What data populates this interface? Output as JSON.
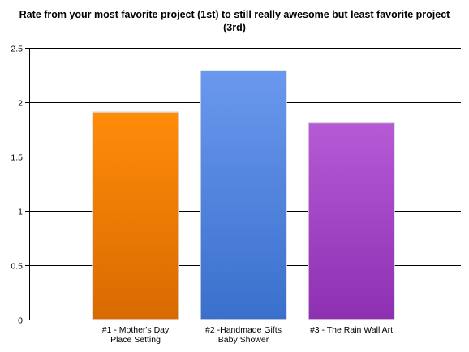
{
  "chart_data": {
    "type": "bar",
    "title_lines": [
      "Rate from your most favorite project (1st) to still really awesome but least favorite project",
      "(3rd)"
    ],
    "categories": [
      [
        "#1 - Mother's Day",
        "Place Setting"
      ],
      [
        "#2 -Handmade Gifts",
        "Baby Shower"
      ],
      [
        "#3 - The Rain Wall Art"
      ]
    ],
    "values": [
      1.91,
      2.29,
      1.81
    ],
    "ylim": [
      0,
      2.5
    ],
    "yticks": [
      "0",
      "0.5",
      "1",
      "1.5",
      "2",
      "2.5"
    ],
    "grid": true,
    "colors": [
      {
        "top": "#ff8c0a",
        "bottom": "#d96a00"
      },
      {
        "top": "#6a98ee",
        "bottom": "#3a70cc"
      },
      {
        "top": "#b65ad6",
        "bottom": "#8e30b2"
      }
    ]
  }
}
